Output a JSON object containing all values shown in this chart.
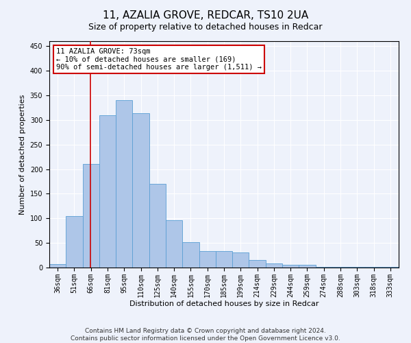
{
  "title": "11, AZALIA GROVE, REDCAR, TS10 2UA",
  "subtitle": "Size of property relative to detached houses in Redcar",
  "xlabel": "Distribution of detached houses by size in Redcar",
  "ylabel": "Number of detached properties",
  "categories": [
    "36sqm",
    "51sqm",
    "66sqm",
    "81sqm",
    "95sqm",
    "110sqm",
    "125sqm",
    "140sqm",
    "155sqm",
    "170sqm",
    "185sqm",
    "199sqm",
    "214sqm",
    "229sqm",
    "244sqm",
    "259sqm",
    "274sqm",
    "288sqm",
    "303sqm",
    "318sqm",
    "333sqm"
  ],
  "bar_heights": [
    7,
    105,
    210,
    310,
    340,
    313,
    170,
    96,
    52,
    34,
    34,
    30,
    16,
    9,
    5,
    5,
    1,
    1,
    1,
    1,
    1
  ],
  "bar_color": "#aec6e8",
  "bar_edge_color": "#5a9fd4",
  "bar_width": 1.0,
  "ylim": [
    0,
    460
  ],
  "yticks": [
    0,
    50,
    100,
    150,
    200,
    250,
    300,
    350,
    400,
    450
  ],
  "marker_line_color": "#cc0000",
  "annotation_text": "11 AZALIA GROVE: 73sqm\n← 10% of detached houses are smaller (169)\n90% of semi-detached houses are larger (1,511) →",
  "annotation_box_color": "#ffffff",
  "annotation_box_edge_color": "#cc0000",
  "footer_line1": "Contains HM Land Registry data © Crown copyright and database right 2024.",
  "footer_line2": "Contains public sector information licensed under the Open Government Licence v3.0.",
  "bg_color": "#eef2fb",
  "grid_color": "#ffffff",
  "title_fontsize": 11,
  "axis_fontsize": 8,
  "tick_fontsize": 7,
  "footer_fontsize": 6.5,
  "ann_fontsize": 7.5
}
